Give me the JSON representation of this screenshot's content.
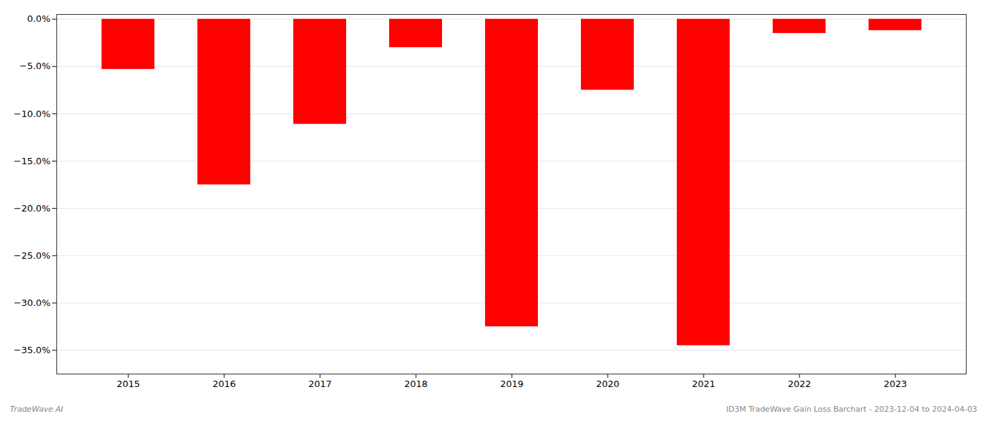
{
  "chart_data": {
    "type": "bar",
    "categories": [
      "2015",
      "2016",
      "2017",
      "2018",
      "2019",
      "2020",
      "2021",
      "2022",
      "2023"
    ],
    "values": [
      -0.053,
      -0.175,
      -0.111,
      -0.03,
      -0.325,
      -0.075,
      -0.345,
      -0.015,
      -0.012
    ],
    "color": "#ff0000",
    "ylim": [
      -0.375,
      0.005
    ],
    "yticks": [
      {
        "value": 0.0,
        "label": "0.0%"
      },
      {
        "value": -0.05,
        "label": "−5.0%"
      },
      {
        "value": -0.1,
        "label": "−10.0%"
      },
      {
        "value": -0.15,
        "label": "−15.0%"
      },
      {
        "value": -0.2,
        "label": "−20.0%"
      },
      {
        "value": -0.25,
        "label": "−25.0%"
      },
      {
        "value": -0.3,
        "label": "−30.0%"
      },
      {
        "value": -0.35,
        "label": "−35.0%"
      }
    ],
    "grid": true,
    "annotations": [
      "TradeWave.AI",
      "ID3M TradeWave Gain Loss Barchart - 2023-12-04 to 2024-04-03"
    ]
  }
}
